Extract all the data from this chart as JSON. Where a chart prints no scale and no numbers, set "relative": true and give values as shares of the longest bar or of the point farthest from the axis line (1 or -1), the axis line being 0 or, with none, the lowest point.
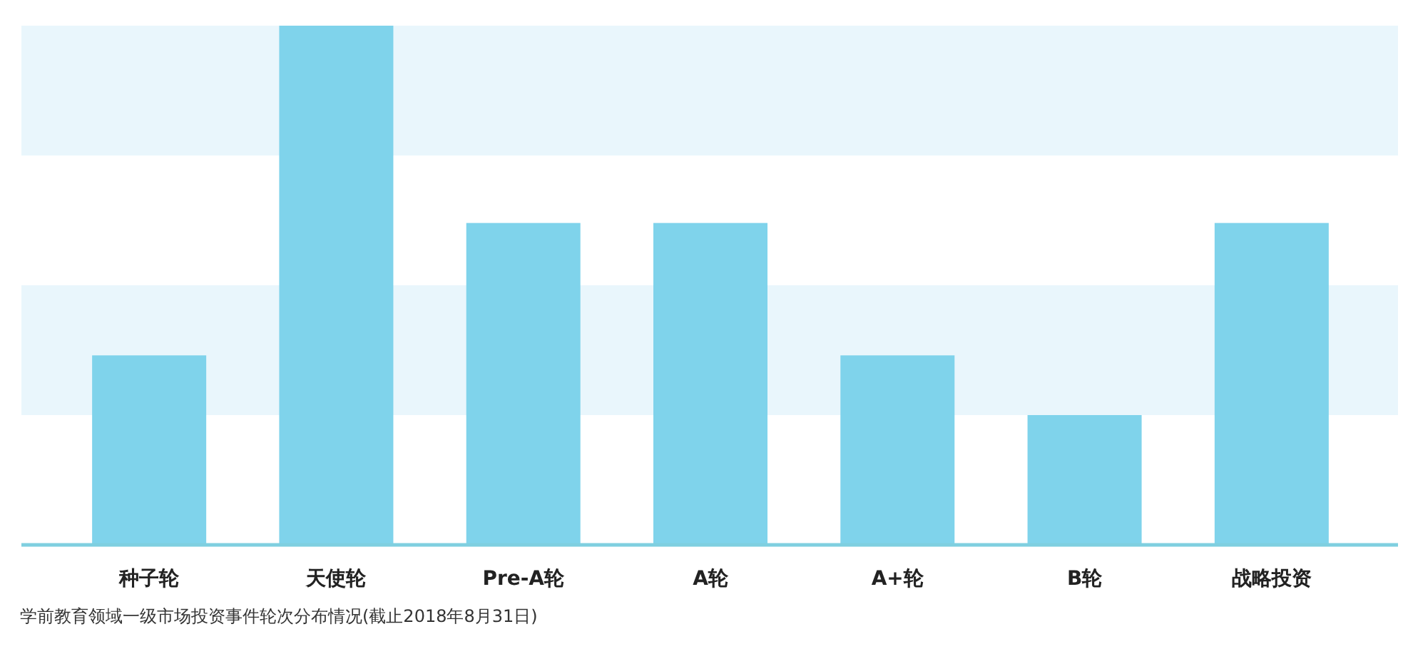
{
  "chart_data": {
    "type": "bar",
    "relative": true,
    "categories": [
      "种子轮",
      "天使轮",
      "Pre-A轮",
      "A轮",
      "A+轮",
      "B轮",
      "战略投资"
    ],
    "values": [
      0.365,
      1,
      0.62,
      0.62,
      0.365,
      0.25,
      0.62
    ],
    "color": "#7fd3eb",
    "bands": [
      {
        "axis": "y",
        "from": 0.25,
        "to": 0.5,
        "color": "#e9f6fc"
      },
      {
        "axis": "y",
        "from": 0.75,
        "to": 1,
        "color": "#e9f6fc"
      }
    ],
    "annotations": [
      "学前教育领域一级市场投资事件轮次分布情况(截止2018年8月31日)"
    ]
  }
}
